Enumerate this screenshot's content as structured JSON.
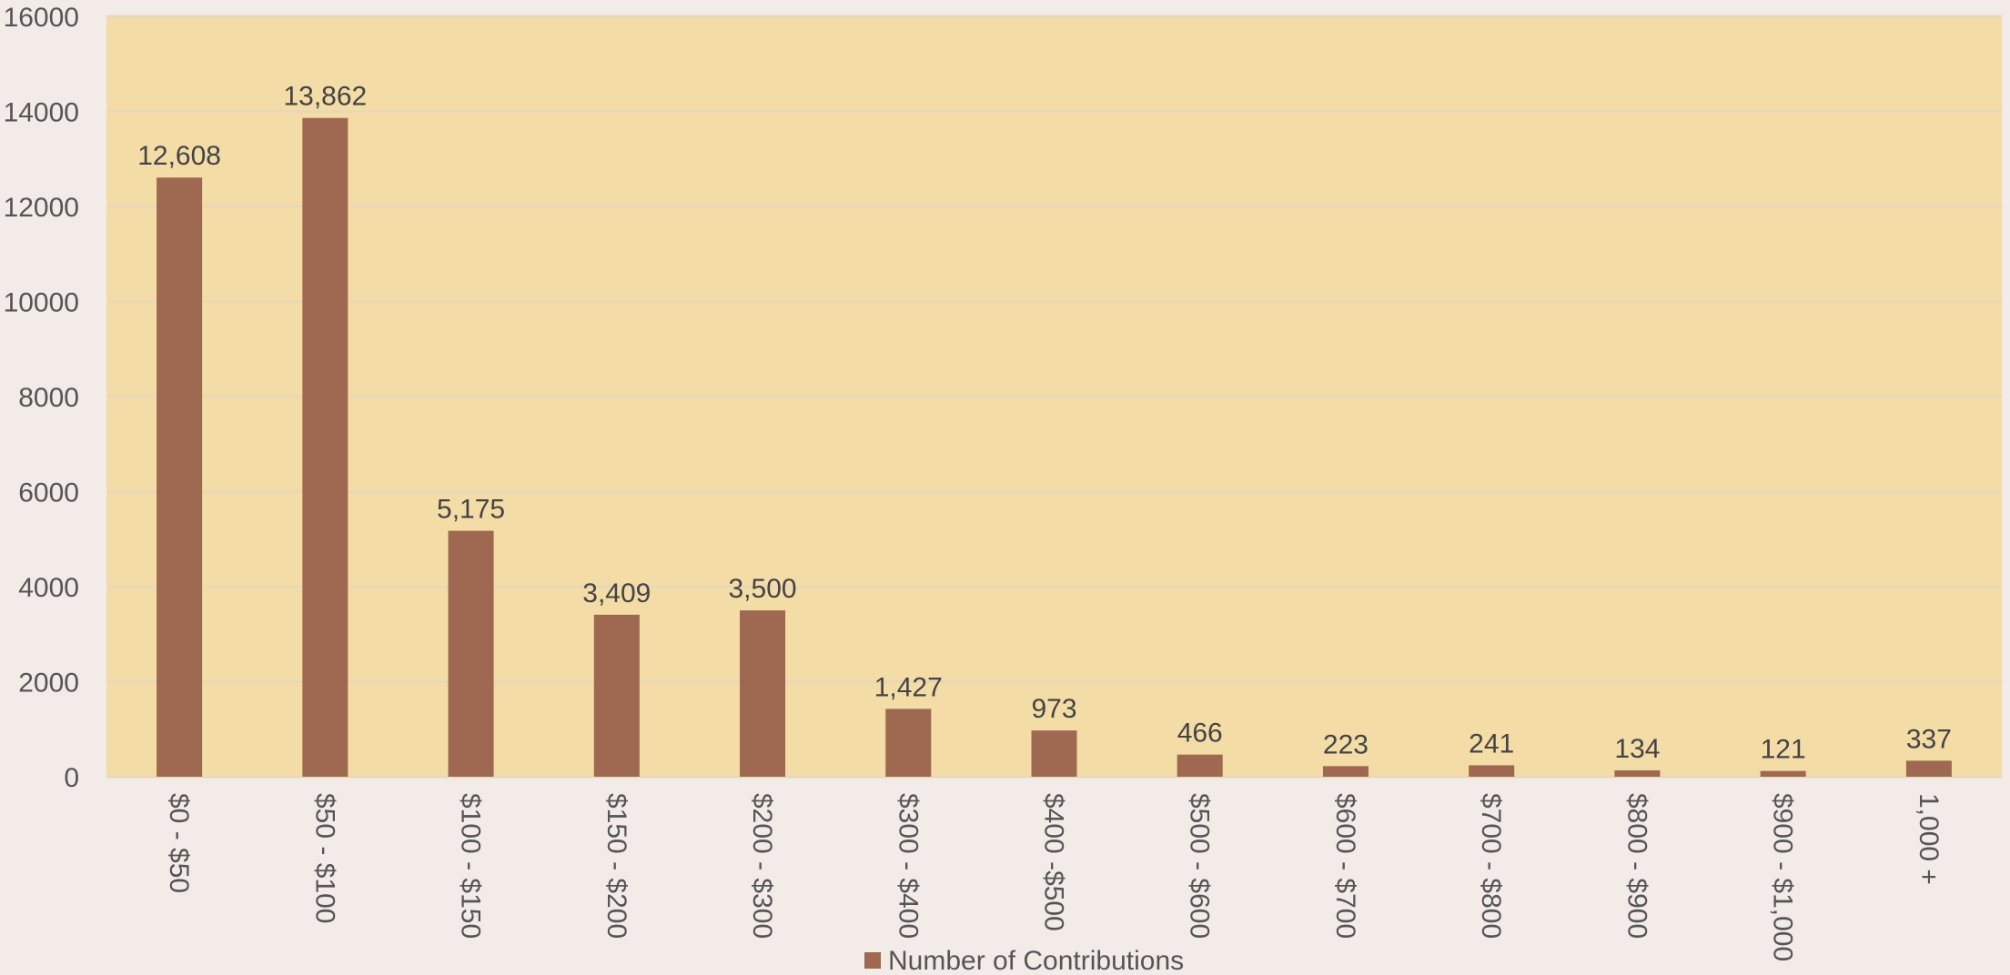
{
  "chart_data": {
    "type": "bar",
    "title": "",
    "xlabel": "",
    "ylabel": "",
    "categories": [
      "$0 - $50",
      "$50 - $100",
      "$100 - $150",
      "$150 - $200",
      "$200 - $300",
      "$300 - $400",
      "$400 -$500",
      "$500 - $600",
      "$600 - $700",
      "$700 - $800",
      "$800 - $900",
      "$900 - $1,000",
      "1,000 +"
    ],
    "series": [
      {
        "name": "Number of Contributions",
        "values": [
          12608,
          13862,
          5175,
          3409,
          3500,
          1427,
          973,
          466,
          223,
          241,
          134,
          121,
          337
        ],
        "data_labels": [
          "12,608",
          "13,862",
          "5,175",
          "3,409",
          "3,500",
          "1,427",
          "973",
          "466",
          "223",
          "241",
          "134",
          "121",
          "337"
        ]
      }
    ],
    "ylim": [
      0,
      16000
    ],
    "yticks": [
      0,
      2000,
      4000,
      6000,
      8000,
      10000,
      12000,
      14000,
      16000
    ],
    "ytick_labels": [
      "0",
      "2000",
      "4000",
      "6000",
      "8000",
      "10000",
      "12000",
      "14000",
      "16000"
    ],
    "grid": true,
    "legend_position": "bottom-center",
    "colors": {
      "bar": "#9e6851",
      "plot_background": "#f3dca6",
      "page_background": "#f2ebe8",
      "gridline": "#e9d8b8"
    }
  }
}
